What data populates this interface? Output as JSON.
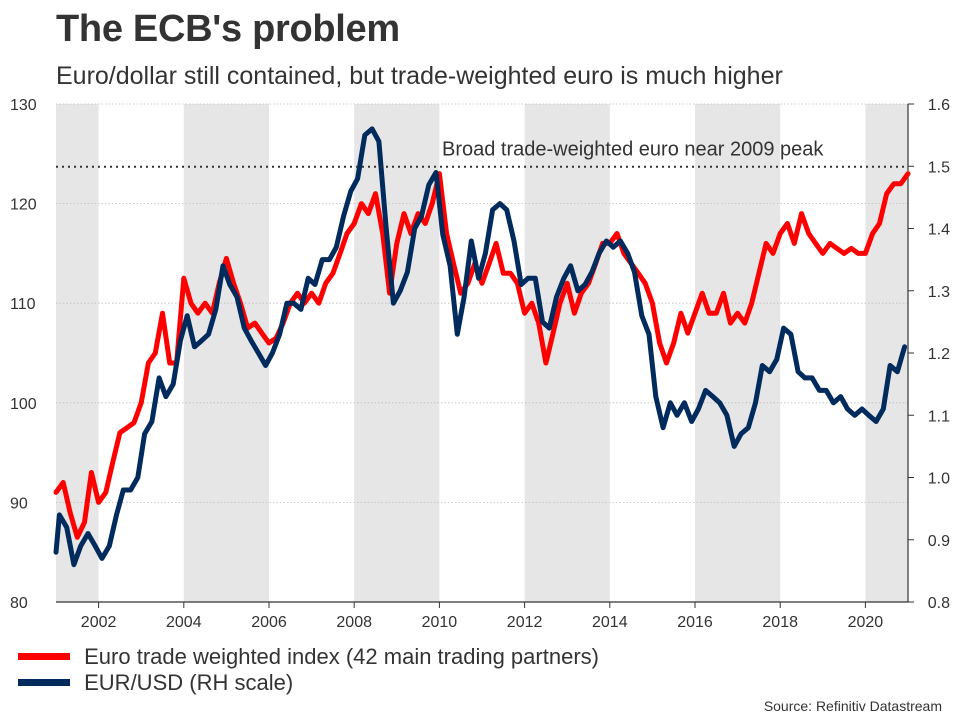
{
  "title": "The ECB's problem",
  "subtitle": "Euro/dollar still contained, but trade-weighted euro is much higher",
  "source": "Source: Refinitiv Datastream",
  "chart_data": {
    "type": "line",
    "title": "The ECB's problem",
    "subtitle": "Euro/dollar still contained, but trade-weighted euro is much higher",
    "x_range": [
      2001.0,
      2021.0
    ],
    "x_ticks": [
      2002,
      2004,
      2006,
      2008,
      2010,
      2012,
      2014,
      2016,
      2018,
      2020
    ],
    "x_tick_labels": [
      "2002",
      "2004",
      "2006",
      "2008",
      "2010",
      "2012",
      "2014",
      "2016",
      "2018",
      "2020"
    ],
    "y_left": {
      "range": [
        80,
        130
      ],
      "ticks": [
        80,
        90,
        100,
        110,
        120,
        130
      ],
      "tick_labels": [
        "80",
        "90",
        "100",
        "110",
        "120",
        "130"
      ]
    },
    "y_right": {
      "range": [
        0.8,
        1.6
      ],
      "ticks": [
        0.8,
        0.9,
        1.0,
        1.1,
        1.2,
        1.3,
        1.4,
        1.5,
        1.6
      ],
      "tick_labels": [
        "0.8",
        "0.9",
        "1.0",
        "1.1",
        "1.2",
        "1.3",
        "1.4",
        "1.5",
        "1.6"
      ],
      "label": "RH scale"
    },
    "grid": true,
    "shaded_periods": [
      [
        2001.0,
        2002.0
      ],
      [
        2004.0,
        2006.0
      ],
      [
        2008.0,
        2010.0
      ],
      [
        2012.0,
        2014.0
      ],
      [
        2016.0,
        2018.0
      ],
      [
        2020.0,
        2021.0
      ]
    ],
    "reference_line": {
      "value": 123.7,
      "axis": "left",
      "label": "Broad trade-weighted euro near 2009 peak"
    },
    "series": [
      {
        "name": "Euro trade weighted index (42 main trading partners)",
        "axis": "left",
        "color": "#ff0000",
        "points": [
          [
            2001.0,
            91
          ],
          [
            2001.17,
            92
          ],
          [
            2001.33,
            89
          ],
          [
            2001.5,
            86.5
          ],
          [
            2001.67,
            88
          ],
          [
            2001.83,
            93
          ],
          [
            2002.0,
            90
          ],
          [
            2002.17,
            91
          ],
          [
            2002.33,
            94
          ],
          [
            2002.5,
            97
          ],
          [
            2002.67,
            97.5
          ],
          [
            2002.83,
            98
          ],
          [
            2003.0,
            100
          ],
          [
            2003.17,
            104
          ],
          [
            2003.33,
            105
          ],
          [
            2003.5,
            109
          ],
          [
            2003.67,
            104
          ],
          [
            2003.83,
            104
          ],
          [
            2004.0,
            112.5
          ],
          [
            2004.17,
            110
          ],
          [
            2004.33,
            109
          ],
          [
            2004.5,
            110
          ],
          [
            2004.67,
            109
          ],
          [
            2004.83,
            112
          ],
          [
            2005.0,
            114.5
          ],
          [
            2005.17,
            112
          ],
          [
            2005.33,
            110
          ],
          [
            2005.5,
            107.5
          ],
          [
            2005.67,
            108
          ],
          [
            2005.83,
            107
          ],
          [
            2006.0,
            106
          ],
          [
            2006.17,
            106.5
          ],
          [
            2006.33,
            108
          ],
          [
            2006.5,
            110
          ],
          [
            2006.67,
            111
          ],
          [
            2006.83,
            110
          ],
          [
            2007.0,
            111
          ],
          [
            2007.17,
            110
          ],
          [
            2007.33,
            112
          ],
          [
            2007.5,
            113
          ],
          [
            2007.67,
            115
          ],
          [
            2007.83,
            117
          ],
          [
            2008.0,
            118
          ],
          [
            2008.17,
            120
          ],
          [
            2008.33,
            119
          ],
          [
            2008.5,
            121
          ],
          [
            2008.67,
            117
          ],
          [
            2008.83,
            111
          ],
          [
            2009.0,
            116
          ],
          [
            2009.17,
            119
          ],
          [
            2009.33,
            117
          ],
          [
            2009.5,
            119
          ],
          [
            2009.67,
            118
          ],
          [
            2009.83,
            120
          ],
          [
            2010.0,
            123
          ],
          [
            2010.17,
            117
          ],
          [
            2010.33,
            114
          ],
          [
            2010.5,
            111
          ],
          [
            2010.67,
            112
          ],
          [
            2010.83,
            114
          ],
          [
            2011.0,
            112
          ],
          [
            2011.17,
            114
          ],
          [
            2011.33,
            116
          ],
          [
            2011.5,
            113
          ],
          [
            2011.67,
            113
          ],
          [
            2011.83,
            112
          ],
          [
            2012.0,
            109
          ],
          [
            2012.17,
            110
          ],
          [
            2012.33,
            108
          ],
          [
            2012.5,
            104
          ],
          [
            2012.67,
            107
          ],
          [
            2012.83,
            110
          ],
          [
            2013.0,
            112
          ],
          [
            2013.17,
            109
          ],
          [
            2013.33,
            111
          ],
          [
            2013.5,
            112
          ],
          [
            2013.67,
            114
          ],
          [
            2013.83,
            116
          ],
          [
            2014.0,
            116
          ],
          [
            2014.17,
            117
          ],
          [
            2014.33,
            115
          ],
          [
            2014.5,
            114
          ],
          [
            2014.67,
            113
          ],
          [
            2014.83,
            112
          ],
          [
            2015.0,
            110
          ],
          [
            2015.17,
            106
          ],
          [
            2015.33,
            104
          ],
          [
            2015.5,
            106
          ],
          [
            2015.67,
            109
          ],
          [
            2015.83,
            107
          ],
          [
            2016.0,
            109
          ],
          [
            2016.17,
            111
          ],
          [
            2016.33,
            109
          ],
          [
            2016.5,
            109
          ],
          [
            2016.67,
            111
          ],
          [
            2016.83,
            108
          ],
          [
            2017.0,
            109
          ],
          [
            2017.17,
            108
          ],
          [
            2017.33,
            110
          ],
          [
            2017.5,
            113
          ],
          [
            2017.67,
            116
          ],
          [
            2017.83,
            115
          ],
          [
            2018.0,
            117
          ],
          [
            2018.17,
            118
          ],
          [
            2018.33,
            116
          ],
          [
            2018.5,
            119
          ],
          [
            2018.67,
            117
          ],
          [
            2018.83,
            116
          ],
          [
            2019.0,
            115
          ],
          [
            2019.17,
            116
          ],
          [
            2019.33,
            115.5
          ],
          [
            2019.5,
            115
          ],
          [
            2019.67,
            115.5
          ],
          [
            2019.83,
            115
          ],
          [
            2020.0,
            115
          ],
          [
            2020.17,
            117
          ],
          [
            2020.33,
            118
          ],
          [
            2020.5,
            121
          ],
          [
            2020.67,
            122
          ],
          [
            2020.83,
            122
          ],
          [
            2021.0,
            123
          ]
        ]
      },
      {
        "name": "EUR/USD (RH scale)",
        "axis": "right",
        "color": "#002b5c",
        "points": [
          [
            2001.0,
            0.88
          ],
          [
            2001.08,
            0.94
          ],
          [
            2001.25,
            0.92
          ],
          [
            2001.42,
            0.86
          ],
          [
            2001.58,
            0.89
          ],
          [
            2001.75,
            0.91
          ],
          [
            2001.92,
            0.89
          ],
          [
            2002.08,
            0.87
          ],
          [
            2002.25,
            0.89
          ],
          [
            2002.42,
            0.94
          ],
          [
            2002.58,
            0.98
          ],
          [
            2002.75,
            0.98
          ],
          [
            2002.92,
            1.0
          ],
          [
            2003.08,
            1.07
          ],
          [
            2003.25,
            1.09
          ],
          [
            2003.42,
            1.16
          ],
          [
            2003.58,
            1.13
          ],
          [
            2003.75,
            1.15
          ],
          [
            2003.92,
            1.22
          ],
          [
            2004.08,
            1.26
          ],
          [
            2004.25,
            1.21
          ],
          [
            2004.42,
            1.22
          ],
          [
            2004.58,
            1.23
          ],
          [
            2004.75,
            1.27
          ],
          [
            2004.92,
            1.34
          ],
          [
            2005.08,
            1.31
          ],
          [
            2005.25,
            1.29
          ],
          [
            2005.42,
            1.24
          ],
          [
            2005.58,
            1.22
          ],
          [
            2005.75,
            1.2
          ],
          [
            2005.92,
            1.18
          ],
          [
            2006.08,
            1.2
          ],
          [
            2006.25,
            1.23
          ],
          [
            2006.42,
            1.28
          ],
          [
            2006.58,
            1.28
          ],
          [
            2006.75,
            1.27
          ],
          [
            2006.92,
            1.32
          ],
          [
            2007.08,
            1.31
          ],
          [
            2007.25,
            1.35
          ],
          [
            2007.42,
            1.35
          ],
          [
            2007.58,
            1.37
          ],
          [
            2007.75,
            1.42
          ],
          [
            2007.92,
            1.46
          ],
          [
            2008.08,
            1.48
          ],
          [
            2008.25,
            1.55
          ],
          [
            2008.42,
            1.56
          ],
          [
            2008.58,
            1.54
          ],
          [
            2008.75,
            1.4
          ],
          [
            2008.92,
            1.28
          ],
          [
            2009.08,
            1.3
          ],
          [
            2009.25,
            1.33
          ],
          [
            2009.42,
            1.4
          ],
          [
            2009.58,
            1.42
          ],
          [
            2009.75,
            1.47
          ],
          [
            2009.92,
            1.49
          ],
          [
            2010.08,
            1.39
          ],
          [
            2010.25,
            1.34
          ],
          [
            2010.42,
            1.23
          ],
          [
            2010.58,
            1.29
          ],
          [
            2010.75,
            1.38
          ],
          [
            2010.92,
            1.32
          ],
          [
            2011.08,
            1.36
          ],
          [
            2011.25,
            1.43
          ],
          [
            2011.42,
            1.44
          ],
          [
            2011.58,
            1.43
          ],
          [
            2011.75,
            1.38
          ],
          [
            2011.92,
            1.31
          ],
          [
            2012.08,
            1.32
          ],
          [
            2012.25,
            1.32
          ],
          [
            2012.42,
            1.25
          ],
          [
            2012.58,
            1.24
          ],
          [
            2012.75,
            1.29
          ],
          [
            2012.92,
            1.32
          ],
          [
            2013.08,
            1.34
          ],
          [
            2013.25,
            1.3
          ],
          [
            2013.42,
            1.31
          ],
          [
            2013.58,
            1.33
          ],
          [
            2013.75,
            1.36
          ],
          [
            2013.92,
            1.38
          ],
          [
            2014.08,
            1.37
          ],
          [
            2014.25,
            1.38
          ],
          [
            2014.42,
            1.36
          ],
          [
            2014.58,
            1.33
          ],
          [
            2014.75,
            1.26
          ],
          [
            2014.92,
            1.23
          ],
          [
            2015.08,
            1.13
          ],
          [
            2015.25,
            1.08
          ],
          [
            2015.42,
            1.12
          ],
          [
            2015.58,
            1.1
          ],
          [
            2015.75,
            1.12
          ],
          [
            2015.92,
            1.09
          ],
          [
            2016.08,
            1.11
          ],
          [
            2016.25,
            1.14
          ],
          [
            2016.42,
            1.13
          ],
          [
            2016.58,
            1.12
          ],
          [
            2016.75,
            1.1
          ],
          [
            2016.92,
            1.05
          ],
          [
            2017.08,
            1.07
          ],
          [
            2017.25,
            1.08
          ],
          [
            2017.42,
            1.12
          ],
          [
            2017.58,
            1.18
          ],
          [
            2017.75,
            1.17
          ],
          [
            2017.92,
            1.19
          ],
          [
            2018.08,
            1.24
          ],
          [
            2018.25,
            1.23
          ],
          [
            2018.42,
            1.17
          ],
          [
            2018.58,
            1.16
          ],
          [
            2018.75,
            1.16
          ],
          [
            2018.92,
            1.14
          ],
          [
            2019.08,
            1.14
          ],
          [
            2019.25,
            1.12
          ],
          [
            2019.42,
            1.13
          ],
          [
            2019.58,
            1.11
          ],
          [
            2019.75,
            1.1
          ],
          [
            2019.92,
            1.11
          ],
          [
            2020.08,
            1.1
          ],
          [
            2020.25,
            1.09
          ],
          [
            2020.42,
            1.11
          ],
          [
            2020.58,
            1.18
          ],
          [
            2020.75,
            1.17
          ],
          [
            2020.92,
            1.21
          ]
        ]
      }
    ]
  }
}
